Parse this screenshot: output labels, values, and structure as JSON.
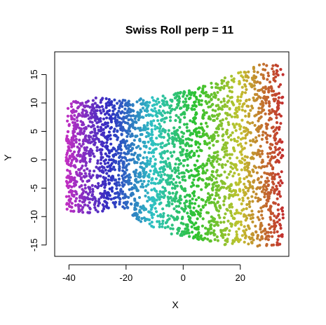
{
  "chart_data": {
    "type": "scatter",
    "title": "Swiss Roll perp = 11",
    "xlabel": "X",
    "ylabel": "Y",
    "xlim": [
      -45,
      37
    ],
    "ylim": [
      -17,
      19
    ],
    "x_ticks": [
      -40,
      -20,
      0,
      20
    ],
    "y_ticks": [
      -15,
      -10,
      -5,
      0,
      5,
      10,
      15
    ],
    "x_tick_labels": [
      "-40",
      "-20",
      "0",
      "20"
    ],
    "y_tick_labels": [
      "-15",
      "-10",
      "-5",
      "0",
      "5",
      "10",
      "15"
    ],
    "color_mapping": "hue by x position (magenta → blue → cyan → green → olive → red)",
    "grid": false,
    "n_points": 3000,
    "shape": {
      "x_range": [
        -41,
        35
      ],
      "top_edge": [
        [
          -41,
          10
        ],
        [
          -30,
          11
        ],
        [
          -20,
          10.5
        ],
        [
          -10,
          11
        ],
        [
          0,
          12
        ],
        [
          10,
          13.5
        ],
        [
          20,
          15.5
        ],
        [
          28,
          17
        ],
        [
          35,
          17
        ]
      ],
      "bottom_edge": [
        [
          -41,
          -9
        ],
        [
          -30,
          -9.5
        ],
        [
          -22,
          -8
        ],
        [
          -15,
          -11
        ],
        [
          -5,
          -13
        ],
        [
          5,
          -14
        ],
        [
          15,
          -15
        ],
        [
          25,
          -15.5
        ],
        [
          35,
          -15
        ]
      ]
    }
  }
}
